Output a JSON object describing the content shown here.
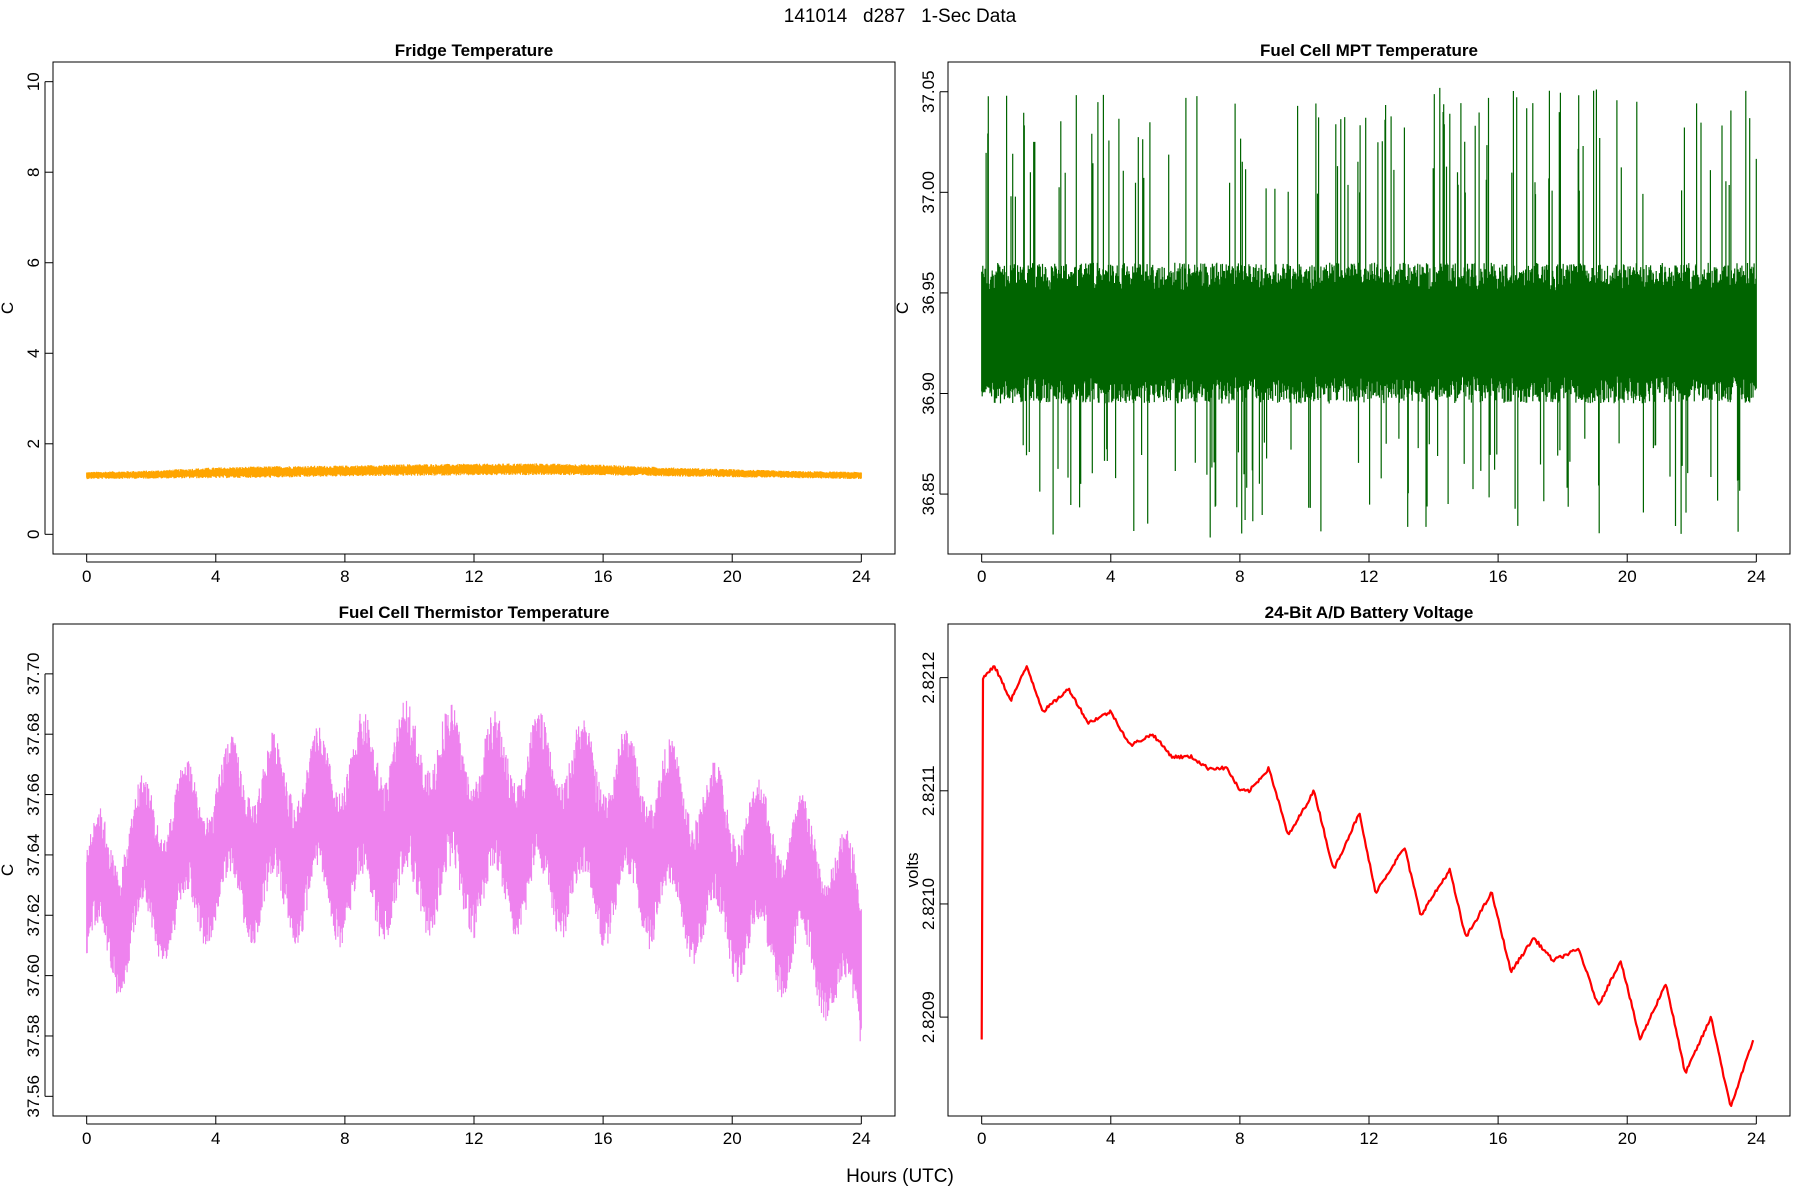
{
  "page": {
    "title": "141014   d287   1-Sec Data",
    "xlabel": "Hours (UTC)"
  },
  "chart_data": [
    {
      "type": "line",
      "title": "Fridge Temperature",
      "xlabel": "Hours (UTC)",
      "ylabel": "C",
      "color": "#FFA500",
      "xlim": [
        0,
        24
      ],
      "ylim": [
        0,
        10
      ],
      "xticks": [
        "0",
        "4",
        "8",
        "12",
        "16",
        "20",
        "24"
      ],
      "yticks": [
        "0",
        "2",
        "4",
        "6",
        "8",
        "10"
      ],
      "series": [
        {
          "x": [
            0,
            2,
            4,
            6,
            8,
            10,
            12,
            14,
            16,
            18,
            20,
            22,
            24
          ],
          "center": [
            1.3,
            1.32,
            1.36,
            1.38,
            1.4,
            1.42,
            1.43,
            1.44,
            1.42,
            1.38,
            1.35,
            1.32,
            1.3
          ],
          "band": [
            0.08,
            0.09,
            0.12,
            0.13,
            0.12,
            0.13,
            0.13,
            0.13,
            0.12,
            0.1,
            0.09,
            0.08,
            0.08
          ]
        }
      ]
    },
    {
      "type": "line",
      "title": "Fuel Cell MPT Temperature",
      "xlabel": "Hours (UTC)",
      "ylabel": "C",
      "color": "#006400",
      "xlim": [
        0,
        24
      ],
      "ylim": [
        36.83,
        37.055
      ],
      "xticks": [
        "0",
        "4",
        "8",
        "12",
        "16",
        "20",
        "24"
      ],
      "yticks": [
        "36.85",
        "36.90",
        "36.95",
        "37.00",
        "37.05"
      ],
      "series": [
        {
          "x": [
            0,
            2,
            4,
            6,
            8,
            10,
            12,
            14,
            16,
            18,
            20,
            22,
            24
          ],
          "center": [
            36.93,
            36.93,
            36.93,
            36.93,
            36.93,
            36.93,
            36.93,
            36.93,
            36.93,
            36.93,
            36.93,
            36.93,
            36.93
          ],
          "dense_band": [
            0.035,
            0.035,
            0.035,
            0.035,
            0.035,
            0.035,
            0.035,
            0.035,
            0.035,
            0.035,
            0.035,
            0.035,
            0.035
          ],
          "spike_max": 37.052,
          "spike_min": 36.828
        }
      ]
    },
    {
      "type": "line",
      "title": "Fuel Cell Thermistor Temperature",
      "xlabel": "Hours (UTC)",
      "ylabel": "C",
      "color": "#EE82EE",
      "xlim": [
        0,
        24
      ],
      "ylim": [
        37.56,
        37.71
      ],
      "xticks": [
        "0",
        "4",
        "8",
        "12",
        "16",
        "20",
        "24"
      ],
      "yticks": [
        "37.56",
        "37.58",
        "37.60",
        "37.62",
        "37.64",
        "37.66",
        "37.68",
        "37.70"
      ],
      "series": [
        {
          "x": [
            0,
            1,
            2,
            3,
            4,
            5,
            6,
            7,
            8,
            9,
            10,
            11,
            12,
            13,
            14,
            15,
            16,
            17,
            18,
            19,
            20,
            21,
            22,
            23,
            24
          ],
          "center": [
            37.624,
            37.626,
            37.636,
            37.638,
            37.644,
            37.646,
            37.645,
            37.646,
            37.647,
            37.65,
            37.652,
            37.652,
            37.65,
            37.65,
            37.65,
            37.649,
            37.647,
            37.646,
            37.643,
            37.638,
            37.634,
            37.63,
            37.626,
            37.62,
            37.605
          ],
          "band": [
            0.018,
            0.022,
            0.022,
            0.022,
            0.022,
            0.024,
            0.024,
            0.024,
            0.026,
            0.028,
            0.028,
            0.028,
            0.026,
            0.026,
            0.026,
            0.026,
            0.026,
            0.024,
            0.024,
            0.024,
            0.024,
            0.024,
            0.024,
            0.024,
            0.026
          ]
        }
      ]
    },
    {
      "type": "line",
      "title": "24-Bit A/D Battery Voltage",
      "xlabel": "Hours (UTC)",
      "ylabel": "volts",
      "color": "#FF0000",
      "xlim": [
        0,
        24
      ],
      "ylim": [
        2.82083,
        2.82123
      ],
      "xticks": [
        "0",
        "4",
        "8",
        "12",
        "16",
        "20",
        "24"
      ],
      "yticks": [
        "2.8209",
        "2.8210",
        "2.8211",
        "2.8212"
      ],
      "series": [
        {
          "x": [
            0.0,
            0.02,
            0.05,
            0.4,
            0.9,
            1.4,
            1.9,
            2.7,
            3.3,
            4.0,
            4.6,
            5.3,
            5.9,
            6.5,
            7.0,
            7.6,
            8.0,
            8.3,
            8.9,
            9.5,
            10.3,
            10.9,
            11.7,
            12.2,
            13.1,
            13.6,
            14.5,
            15.0,
            15.8,
            16.4,
            17.1,
            17.7,
            18.5,
            19.1,
            19.8,
            20.4,
            21.2,
            21.8,
            22.6,
            23.2,
            23.9
          ],
          "y": [
            2.82088,
            2.8212,
            2.8212,
            2.82121,
            2.82118,
            2.82121,
            2.82117,
            2.82119,
            2.82116,
            2.82117,
            2.82114,
            2.82115,
            2.82113,
            2.82113,
            2.82112,
            2.82112,
            2.8211,
            2.8211,
            2.82112,
            2.82106,
            2.8211,
            2.82103,
            2.82108,
            2.82101,
            2.82105,
            2.82099,
            2.82103,
            2.82097,
            2.82101,
            2.82094,
            2.82097,
            2.82095,
            2.82096,
            2.82091,
            2.82095,
            2.82088,
            2.82093,
            2.82085,
            2.8209,
            2.82082,
            2.82088
          ]
        }
      ]
    }
  ]
}
